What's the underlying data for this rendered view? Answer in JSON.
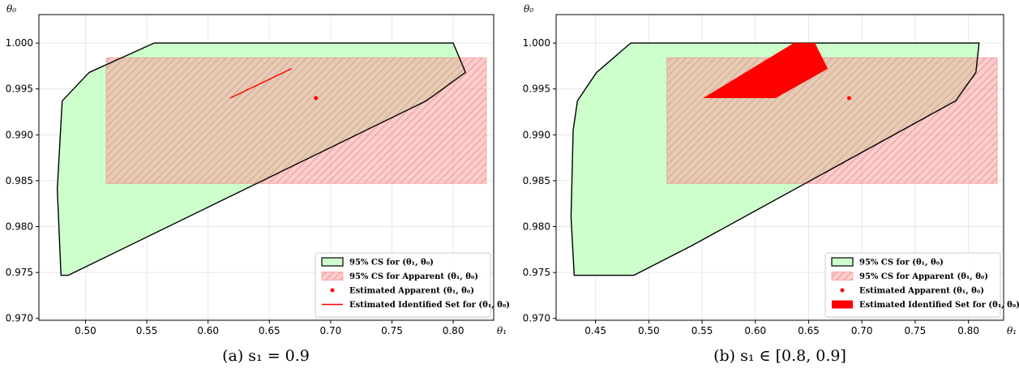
{
  "colors": {
    "cs_fill": "#ccffcc",
    "cs_edge": "#000000",
    "apparent_fill": "#ff9999",
    "apparent_hatch": "#d9a099",
    "estimate": "#ff0000",
    "grid": "#e6e6e6"
  },
  "chart_data": [
    {
      "type": "area",
      "caption": "(a) s₁ = 0.9",
      "xlabel": "θ₁",
      "ylabel": "θ₀",
      "xlim": [
        0.462,
        0.833
      ],
      "ylim": [
        0.9698,
        1.0031
      ],
      "xticks": [
        0.5,
        0.55,
        0.6,
        0.65,
        0.7,
        0.75,
        0.8
      ],
      "xtick_labels": [
        "0.50",
        "0.55",
        "0.60",
        "0.65",
        "0.70",
        "0.75",
        "0.80"
      ],
      "yticks": [
        0.97,
        0.975,
        0.98,
        0.985,
        0.99,
        0.995,
        1.0
      ],
      "ytick_labels": [
        "0.970",
        "0.975",
        "0.980",
        "0.985",
        "0.990",
        "0.995",
        "1.000"
      ],
      "grid": true,
      "legend_position": "lower right",
      "cs_polygon": [
        [
          0.48,
          0.9747
        ],
        [
          0.486,
          0.9747
        ],
        [
          0.778,
          0.9937
        ],
        [
          0.81,
          0.9968
        ],
        [
          0.8,
          1.0
        ],
        [
          0.556,
          1.0
        ],
        [
          0.503,
          0.9968
        ],
        [
          0.481,
          0.9937
        ],
        [
          0.477,
          0.9841
        ]
      ],
      "apparent_rect": {
        "x": [
          0.517,
          0.827
        ],
        "y": [
          0.9847,
          0.9984
        ]
      },
      "estimated_apparent": [
        0.688,
        0.994
      ],
      "identified_set": {
        "kind": "line",
        "points": [
          [
            0.618,
            0.994
          ],
          [
            0.668,
            0.9972
          ]
        ]
      },
      "legend": [
        {
          "key": "cs",
          "label": "95% CS for (θ₁, θ₀)"
        },
        {
          "key": "apparent",
          "label": "95% CS for Apparent (θ₁, θ₀)"
        },
        {
          "key": "point",
          "label": "Estimated Apparent (θ₁, θ₀)"
        },
        {
          "key": "set_line",
          "label": "Estimated Identified Set for (θ₁, θ₀)"
        }
      ]
    },
    {
      "type": "area",
      "caption": "(b) s₁ ∈ [0.8, 0.9]",
      "xlabel": "θ₁",
      "ylabel": "θ₀",
      "xlim": [
        0.413,
        0.833
      ],
      "ylim": [
        0.9698,
        1.0031
      ],
      "xticks": [
        0.45,
        0.5,
        0.55,
        0.6,
        0.65,
        0.7,
        0.75,
        0.8
      ],
      "xtick_labels": [
        "0.45",
        "0.50",
        "0.55",
        "0.60",
        "0.65",
        "0.70",
        "0.75",
        "0.80"
      ],
      "yticks": [
        0.97,
        0.975,
        0.98,
        0.985,
        0.99,
        0.995,
        1.0
      ],
      "ytick_labels": [
        "0.970",
        "0.975",
        "0.980",
        "0.985",
        "0.990",
        "0.995",
        "1.000"
      ],
      "grid": true,
      "legend_position": "lower right",
      "cs_polygon": [
        [
          0.43,
          0.9747
        ],
        [
          0.486,
          0.9747
        ],
        [
          0.54,
          0.9779
        ],
        [
          0.788,
          0.9937
        ],
        [
          0.807,
          0.9968
        ],
        [
          0.81,
          1.0
        ],
        [
          0.483,
          1.0
        ],
        [
          0.451,
          0.9968
        ],
        [
          0.433,
          0.9937
        ],
        [
          0.429,
          0.9905
        ],
        [
          0.427,
          0.981
        ]
      ],
      "apparent_rect": {
        "x": [
          0.517,
          0.827
        ],
        "y": [
          0.9847,
          0.9984
        ]
      },
      "estimated_apparent": [
        0.688,
        0.994
      ],
      "identified_set": {
        "kind": "polygon",
        "points": [
          [
            0.551,
            0.994
          ],
          [
            0.619,
            0.994
          ],
          [
            0.668,
            0.9972
          ],
          [
            0.656,
            1.0
          ],
          [
            0.636,
            1.0
          ]
        ]
      },
      "legend": [
        {
          "key": "cs",
          "label": "95% CS for (θ₁, θ₀)"
        },
        {
          "key": "apparent",
          "label": "95% CS for Apparent (θ₁, θ₀)"
        },
        {
          "key": "point",
          "label": "Estimated Apparent (θ₁, θ₀)"
        },
        {
          "key": "set_poly",
          "label": "Estimated Identified Set for (θ₁, θ₀)"
        }
      ]
    }
  ]
}
